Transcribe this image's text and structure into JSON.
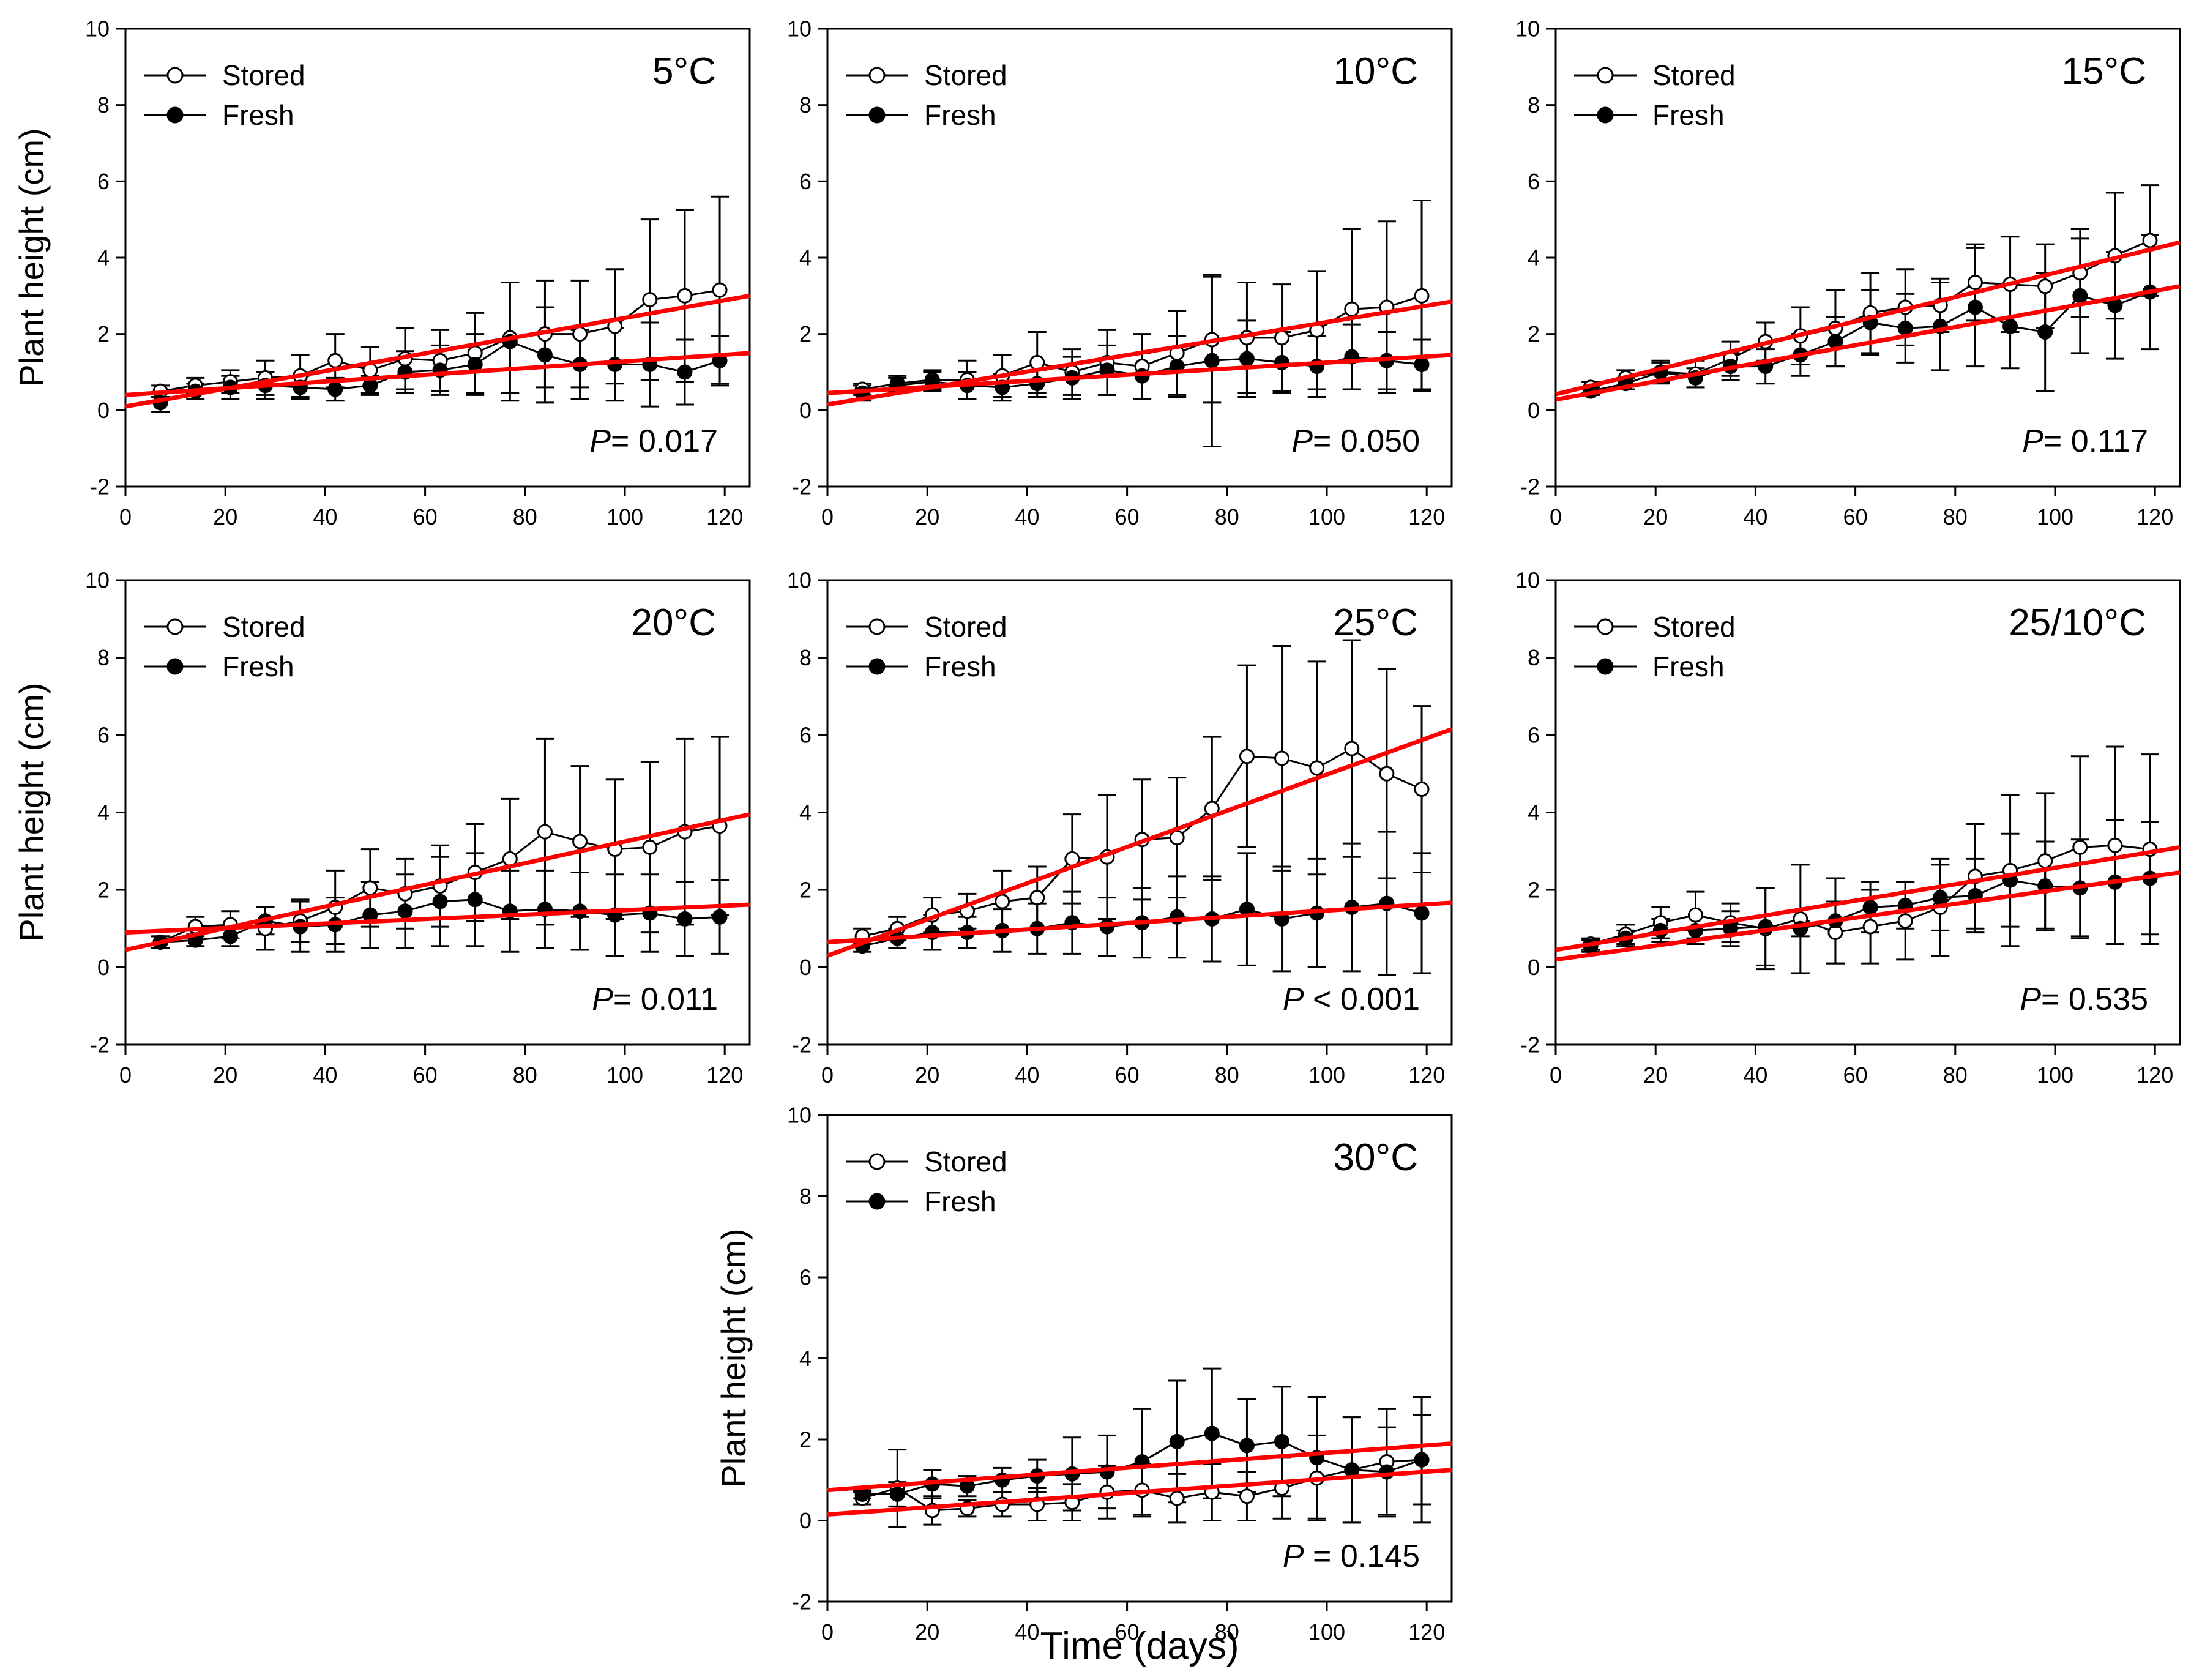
{
  "figure": {
    "ylabel": "Plant height (cm)",
    "xlabel": "Time (days)",
    "colors": {
      "regression": "#ff0000",
      "series": "#000000",
      "background": "#ffffff"
    },
    "legend": {
      "stored_label": "Stored",
      "fresh_label": "Fresh"
    }
  },
  "chart_data": [
    {
      "type": "line",
      "title": "5°C",
      "p_label": "P= 0.017",
      "row": 0,
      "col": 0,
      "xlabel": "Time (days)",
      "ylabel": "Plant height (cm)",
      "xlim": [
        0,
        125
      ],
      "ylim": [
        -2,
        10
      ],
      "grid": false,
      "legend_position": "top-left",
      "xticks": [
        0,
        20,
        40,
        60,
        80,
        100,
        120
      ],
      "yticks": [
        -2,
        0,
        2,
        4,
        6,
        8,
        10
      ],
      "x": [
        7,
        14,
        21,
        28,
        35,
        42,
        49,
        56,
        63,
        70,
        77,
        84,
        91,
        98,
        105,
        112,
        119
      ],
      "series": [
        {
          "name": "Stored",
          "marker": "open",
          "values": [
            0.5,
            0.65,
            0.75,
            0.85,
            0.9,
            1.3,
            1.05,
            1.35,
            1.3,
            1.5,
            1.9,
            2.0,
            2.0,
            2.2,
            2.9,
            3.0,
            3.15
          ],
          "errors": [
            0.15,
            0.2,
            0.3,
            0.45,
            0.55,
            0.7,
            0.6,
            0.8,
            0.8,
            1.05,
            1.45,
            1.4,
            1.4,
            1.5,
            2.1,
            2.25,
            2.45
          ],
          "regression": {
            "x": [
              0,
              125
            ],
            "y": [
              0.1,
              3.0
            ]
          }
        },
        {
          "name": "Fresh",
          "marker": "filled",
          "values": [
            0.2,
            0.5,
            0.6,
            0.65,
            0.6,
            0.55,
            0.65,
            1.0,
            1.05,
            1.2,
            1.8,
            1.45,
            1.2,
            1.2,
            1.2,
            1.0,
            1.3
          ],
          "errors": [
            0.25,
            0.2,
            0.3,
            0.35,
            0.3,
            0.3,
            0.25,
            0.55,
            0.65,
            0.8,
            1.55,
            1.25,
            0.9,
            0.95,
            1.1,
            0.85,
            0.65
          ],
          "regression": {
            "x": [
              0,
              125
            ],
            "y": [
              0.4,
              1.5
            ]
          }
        }
      ]
    },
    {
      "type": "line",
      "title": "10°C",
      "p_label": "P= 0.050",
      "row": 0,
      "col": 1,
      "xlabel": "Time (days)",
      "ylabel": "Plant height (cm)",
      "xlim": [
        0,
        125
      ],
      "ylim": [
        -2,
        10
      ],
      "grid": false,
      "legend_position": "top-left",
      "xticks": [
        0,
        20,
        40,
        60,
        80,
        100,
        120
      ],
      "yticks": [
        -2,
        0,
        2,
        4,
        6,
        8,
        10
      ],
      "x": [
        7,
        14,
        21,
        28,
        35,
        42,
        49,
        56,
        63,
        70,
        77,
        84,
        91,
        98,
        105,
        112,
        119
      ],
      "series": [
        {
          "name": "Stored",
          "marker": "open",
          "values": [
            0.55,
            0.7,
            0.8,
            0.8,
            0.9,
            1.25,
            1.0,
            1.25,
            1.15,
            1.5,
            1.85,
            1.9,
            1.9,
            2.1,
            2.65,
            2.7,
            3.0
          ],
          "errors": [
            0.15,
            0.2,
            0.25,
            0.5,
            0.55,
            0.8,
            0.6,
            0.85,
            0.85,
            1.1,
            1.65,
            1.45,
            1.4,
            1.55,
            2.1,
            2.25,
            2.5
          ],
          "regression": {
            "x": [
              0,
              125
            ],
            "y": [
              0.15,
              2.85
            ]
          }
        },
        {
          "name": "Fresh",
          "marker": "filled",
          "values": [
            0.45,
            0.65,
            0.75,
            0.65,
            0.6,
            0.7,
            0.85,
            1.05,
            0.9,
            1.15,
            1.3,
            1.35,
            1.25,
            1.15,
            1.4,
            1.3,
            1.2
          ],
          "errors": [
            0.2,
            0.2,
            0.25,
            0.35,
            0.35,
            0.35,
            0.55,
            0.65,
            0.6,
            0.8,
            2.25,
            1.0,
            0.8,
            0.8,
            0.85,
            0.75,
            0.65
          ],
          "regression": {
            "x": [
              0,
              125
            ],
            "y": [
              0.45,
              1.45
            ]
          }
        }
      ]
    },
    {
      "type": "line",
      "title": "15°C",
      "p_label": "P= 0.117",
      "row": 0,
      "col": 2,
      "xlabel": "Time (days)",
      "ylabel": "Plant height (cm)",
      "xlim": [
        0,
        125
      ],
      "ylim": [
        -2,
        10
      ],
      "grid": false,
      "legend_position": "top-left",
      "xticks": [
        0,
        20,
        40,
        60,
        80,
        100,
        120
      ],
      "yticks": [
        -2,
        0,
        2,
        4,
        6,
        8,
        10
      ],
      "x": [
        7,
        14,
        21,
        28,
        35,
        42,
        49,
        56,
        63,
        70,
        77,
        84,
        91,
        98,
        105,
        112,
        119
      ],
      "series": [
        {
          "name": "Stored",
          "marker": "open",
          "values": [
            0.6,
            0.85,
            1.0,
            0.95,
            1.35,
            1.8,
            1.95,
            2.15,
            2.55,
            2.7,
            2.75,
            3.35,
            3.3,
            3.25,
            3.6,
            4.05,
            4.45
          ],
          "errors": [
            0.15,
            0.2,
            0.3,
            0.35,
            0.45,
            0.5,
            0.75,
            1.0,
            1.05,
            1.0,
            0.7,
            1.0,
            1.25,
            1.1,
            1.15,
            1.65,
            1.45
          ],
          "regression": {
            "x": [
              0,
              125
            ],
            "y": [
              0.42,
              4.4
            ]
          }
        },
        {
          "name": "Fresh",
          "marker": "filled",
          "values": [
            0.5,
            0.7,
            1.0,
            0.85,
            1.15,
            1.15,
            1.45,
            1.8,
            2.3,
            2.15,
            2.2,
            2.7,
            2.2,
            2.05,
            3.0,
            2.75,
            3.1
          ],
          "errors": [
            0.1,
            0.15,
            0.25,
            0.25,
            0.35,
            0.45,
            0.55,
            0.65,
            0.85,
            0.9,
            1.15,
            1.55,
            1.1,
            1.55,
            1.5,
            1.4,
            1.5
          ],
          "regression": {
            "x": [
              0,
              125
            ],
            "y": [
              0.28,
              3.25
            ]
          }
        }
      ]
    },
    {
      "type": "line",
      "title": "20°C",
      "p_label": "P= 0.011",
      "row": 1,
      "col": 0,
      "xlabel": "Time (days)",
      "ylabel": "Plant height (cm)",
      "xlim": [
        0,
        125
      ],
      "ylim": [
        -2,
        10
      ],
      "grid": false,
      "legend_position": "top-left",
      "xticks": [
        0,
        20,
        40,
        60,
        80,
        100,
        120
      ],
      "yticks": [
        -2,
        0,
        2,
        4,
        6,
        8,
        10
      ],
      "x": [
        7,
        14,
        21,
        28,
        35,
        42,
        49,
        56,
        63,
        70,
        77,
        84,
        91,
        98,
        105,
        112,
        119
      ],
      "series": [
        {
          "name": "Stored",
          "marker": "open",
          "values": [
            0.65,
            1.05,
            1.1,
            1.0,
            1.2,
            1.55,
            2.05,
            1.9,
            2.1,
            2.45,
            2.8,
            3.5,
            3.25,
            3.05,
            3.1,
            3.5,
            3.65
          ],
          "errors": [
            0.15,
            0.25,
            0.35,
            0.55,
            0.55,
            0.95,
            1.0,
            0.9,
            1.05,
            1.25,
            1.55,
            2.4,
            1.95,
            1.8,
            2.2,
            2.4,
            2.3
          ],
          "regression": {
            "x": [
              0,
              125
            ],
            "y": [
              0.45,
              3.95
            ]
          }
        },
        {
          "name": "Fresh",
          "marker": "filled",
          "values": [
            0.65,
            0.7,
            0.8,
            1.2,
            1.05,
            1.1,
            1.35,
            1.45,
            1.7,
            1.75,
            1.45,
            1.5,
            1.45,
            1.35,
            1.4,
            1.25,
            1.3
          ],
          "errors": [
            0.15,
            0.15,
            0.25,
            0.35,
            0.65,
            0.7,
            0.85,
            0.95,
            1.15,
            1.2,
            1.05,
            1.0,
            1.0,
            1.05,
            1.0,
            0.95,
            0.95
          ],
          "regression": {
            "x": [
              0,
              125
            ],
            "y": [
              0.9,
              1.62
            ]
          }
        }
      ]
    },
    {
      "type": "line",
      "title": "25°C",
      "p_label": "P < 0.001",
      "row": 1,
      "col": 1,
      "xlabel": "Time (days)",
      "ylabel": "Plant height (cm)",
      "xlim": [
        0,
        125
      ],
      "ylim": [
        -2,
        10
      ],
      "grid": false,
      "legend_position": "top-left",
      "xticks": [
        0,
        20,
        40,
        60,
        80,
        100,
        120
      ],
      "yticks": [
        -2,
        0,
        2,
        4,
        6,
        8,
        10
      ],
      "x": [
        7,
        14,
        21,
        28,
        35,
        42,
        49,
        56,
        63,
        70,
        77,
        84,
        91,
        98,
        105,
        112,
        119
      ],
      "series": [
        {
          "name": "Stored",
          "marker": "open",
          "values": [
            0.8,
            1.0,
            1.35,
            1.45,
            1.7,
            1.8,
            2.8,
            2.85,
            3.3,
            3.35,
            4.1,
            5.45,
            5.4,
            5.15,
            5.65,
            5.0,
            4.6
          ],
          "errors": [
            0.2,
            0.3,
            0.45,
            0.45,
            0.8,
            0.8,
            1.15,
            1.6,
            1.55,
            1.55,
            1.85,
            2.35,
            2.9,
            2.75,
            2.8,
            2.7,
            2.15
          ],
          "regression": {
            "x": [
              0,
              125
            ],
            "y": [
              0.3,
              6.15
            ]
          }
        },
        {
          "name": "Fresh",
          "marker": "filled",
          "values": [
            0.55,
            0.75,
            0.9,
            0.9,
            0.95,
            1.0,
            1.15,
            1.05,
            1.15,
            1.3,
            1.25,
            1.5,
            1.25,
            1.4,
            1.55,
            1.65,
            1.4
          ],
          "errors": [
            0.15,
            0.25,
            0.45,
            0.4,
            0.55,
            0.65,
            0.8,
            0.75,
            0.9,
            1.05,
            1.1,
            1.45,
            1.35,
            1.4,
            1.65,
            1.85,
            1.55
          ],
          "regression": {
            "x": [
              0,
              125
            ],
            "y": [
              0.65,
              1.67
            ]
          }
        }
      ]
    },
    {
      "type": "line",
      "title": "25/10°C",
      "p_label": "P= 0.535",
      "row": 1,
      "col": 2,
      "xlabel": "Time (days)",
      "ylabel": "Plant height (cm)",
      "xlim": [
        0,
        125
      ],
      "ylim": [
        -2,
        10
      ],
      "grid": false,
      "legend_position": "top-left",
      "xticks": [
        0,
        20,
        40,
        60,
        80,
        100,
        120
      ],
      "yticks": [
        -2,
        0,
        2,
        4,
        6,
        8,
        10
      ],
      "x": [
        7,
        14,
        21,
        28,
        35,
        42,
        49,
        56,
        63,
        70,
        77,
        84,
        91,
        98,
        105,
        112,
        119
      ],
      "series": [
        {
          "name": "Stored",
          "marker": "open",
          "values": [
            0.6,
            0.85,
            1.15,
            1.35,
            1.15,
            1.0,
            1.25,
            0.9,
            1.05,
            1.2,
            1.55,
            2.35,
            2.5,
            2.75,
            3.1,
            3.15,
            3.05
          ],
          "errors": [
            0.15,
            0.25,
            0.4,
            0.6,
            0.5,
            1.05,
            1.4,
            0.8,
            0.95,
            1.0,
            1.25,
            1.35,
            1.95,
            1.75,
            2.35,
            2.55,
            2.45
          ],
          "regression": {
            "x": [
              0,
              125
            ],
            "y": [
              0.45,
              3.1
            ]
          }
        },
        {
          "name": "Fresh",
          "marker": "filled",
          "values": [
            0.55,
            0.75,
            0.95,
            0.95,
            1.0,
            1.05,
            1.0,
            1.2,
            1.55,
            1.6,
            1.8,
            1.85,
            2.25,
            2.1,
            2.05,
            2.2,
            2.3
          ],
          "errors": [
            0.15,
            0.2,
            0.3,
            0.35,
            0.45,
            1.0,
            0.2,
            1.1,
            0.65,
            0.6,
            0.85,
            0.95,
            1.2,
            1.15,
            1.25,
            1.6,
            1.45
          ],
          "regression": {
            "x": [
              0,
              125
            ],
            "y": [
              0.2,
              2.45
            ]
          }
        }
      ]
    },
    {
      "type": "line",
      "title": "30°C",
      "p_label": "P = 0.145",
      "row": 2,
      "col": 1,
      "xlabel": "Time (days)",
      "ylabel": "Plant height (cm)",
      "xlim": [
        0,
        125
      ],
      "ylim": [
        -2,
        10
      ],
      "grid": false,
      "legend_position": "top-left",
      "xticks": [
        0,
        20,
        40,
        60,
        80,
        100,
        120
      ],
      "yticks": [
        -2,
        0,
        2,
        4,
        6,
        8,
        10
      ],
      "x": [
        7,
        14,
        21,
        28,
        35,
        42,
        49,
        56,
        63,
        70,
        77,
        84,
        91,
        98,
        105,
        112,
        119
      ],
      "series": [
        {
          "name": "Stored",
          "marker": "open",
          "values": [
            0.55,
            0.8,
            0.25,
            0.3,
            0.4,
            0.4,
            0.45,
            0.7,
            0.75,
            0.55,
            0.7,
            0.6,
            0.8,
            1.05,
            1.25,
            1.45,
            1.5
          ],
          "errors": [
            0.15,
            0.95,
            0.35,
            0.2,
            0.3,
            0.4,
            0.45,
            0.65,
            0.65,
            0.6,
            0.7,
            0.6,
            0.75,
            1.05,
            1.3,
            1.3,
            1.55
          ],
          "regression": {
            "x": [
              0,
              125
            ],
            "y": [
              0.15,
              1.25
            ]
          }
        },
        {
          "name": "Fresh",
          "marker": "filled",
          "values": [
            0.65,
            0.65,
            0.9,
            0.85,
            1.0,
            1.1,
            1.15,
            1.2,
            1.45,
            1.95,
            2.15,
            1.85,
            1.95,
            1.55,
            1.25,
            1.2,
            1.5
          ],
          "errors": [
            0.1,
            0.3,
            0.35,
            0.25,
            0.3,
            0.4,
            0.9,
            0.9,
            1.3,
            1.5,
            1.6,
            1.15,
            1.35,
            1.5,
            1.3,
            1.1,
            1.1
          ],
          "regression": {
            "x": [
              0,
              125
            ],
            "y": [
              0.75,
              1.9
            ]
          }
        }
      ]
    }
  ]
}
